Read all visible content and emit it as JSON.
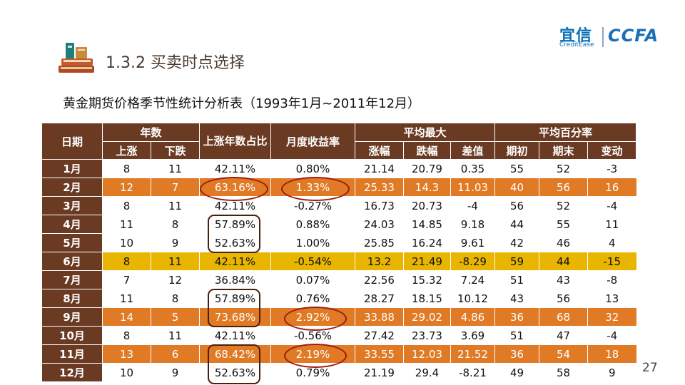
{
  "section": {
    "number": "1.3.2",
    "title": "买卖时点选择"
  },
  "logo": {
    "name": "宜信",
    "sub": "CreditEase",
    "ccfa": "CCFA"
  },
  "subtitle": "黄金期货价格季节性统计分析表（1993年1月~2011年12月）",
  "table": {
    "headers": {
      "date": "日期",
      "years": "年数",
      "up": "上涨",
      "down": "下跌",
      "up_ratio": "上涨年数占比",
      "monthly_return": "月度收益率",
      "avg_max": "平均最大",
      "rise": "涨幅",
      "fall": "跌幅",
      "diff": "差值",
      "avg_pct": "平均百分率",
      "start": "期初",
      "end": "期末",
      "change": "变动"
    },
    "rows": [
      {
        "month": "1月",
        "up": "8",
        "down": "11",
        "ratio": "42.11%",
        "ret": "0.80%",
        "rise": "21.14",
        "fall": "20.79",
        "diff": "0.35",
        "start": "55",
        "end": "52",
        "change": "-3"
      },
      {
        "month": "2月",
        "up": "12",
        "down": "7",
        "ratio": "63.16%",
        "ret": "1.33%",
        "rise": "25.33",
        "fall": "14.3",
        "diff": "11.03",
        "start": "40",
        "end": "56",
        "change": "16"
      },
      {
        "month": "3月",
        "up": "8",
        "down": "11",
        "ratio": "42.11%",
        "ret": "-0.27%",
        "rise": "16.73",
        "fall": "20.73",
        "diff": "-4",
        "start": "56",
        "end": "52",
        "change": "-4"
      },
      {
        "month": "4月",
        "up": "11",
        "down": "8",
        "ratio": "57.89%",
        "ret": "0.88%",
        "rise": "24.03",
        "fall": "14.85",
        "diff": "9.18",
        "start": "44",
        "end": "55",
        "change": "11"
      },
      {
        "month": "5月",
        "up": "10",
        "down": "9",
        "ratio": "52.63%",
        "ret": "1.00%",
        "rise": "25.85",
        "fall": "16.24",
        "diff": "9.61",
        "start": "42",
        "end": "46",
        "change": "4"
      },
      {
        "month": "6月",
        "up": "8",
        "down": "11",
        "ratio": "42.11%",
        "ret": "-0.54%",
        "rise": "13.2",
        "fall": "21.49",
        "diff": "-8.29",
        "start": "59",
        "end": "44",
        "change": "-15"
      },
      {
        "month": "7月",
        "up": "7",
        "down": "12",
        "ratio": "36.84%",
        "ret": "0.07%",
        "rise": "22.56",
        "fall": "15.32",
        "diff": "7.24",
        "start": "51",
        "end": "43",
        "change": "-8"
      },
      {
        "month": "8月",
        "up": "11",
        "down": "8",
        "ratio": "57.89%",
        "ret": "0.76%",
        "rise": "28.27",
        "fall": "18.15",
        "diff": "10.12",
        "start": "43",
        "end": "56",
        "change": "13"
      },
      {
        "month": "9月",
        "up": "14",
        "down": "5",
        "ratio": "73.68%",
        "ret": "2.92%",
        "rise": "33.88",
        "fall": "29.02",
        "diff": "4.86",
        "start": "36",
        "end": "68",
        "change": "32"
      },
      {
        "month": "10月",
        "up": "8",
        "down": "11",
        "ratio": "42.11%",
        "ret": "-0.56%",
        "rise": "27.42",
        "fall": "23.73",
        "diff": "3.69",
        "start": "51",
        "end": "47",
        "change": "-4"
      },
      {
        "month": "11月",
        "up": "13",
        "down": "6",
        "ratio": "68.42%",
        "ret": "2.19%",
        "rise": "33.55",
        "fall": "12.03",
        "diff": "21.52",
        "start": "36",
        "end": "54",
        "change": "18"
      },
      {
        "month": "12月",
        "up": "10",
        "down": "9",
        "ratio": "52.63%",
        "ret": "0.79%",
        "rise": "21.19",
        "fall": "29.4",
        "diff": "-8.21",
        "start": "49",
        "end": "58",
        "change": "9"
      }
    ]
  },
  "colors": {
    "header_brown": "#6b3a22",
    "highlight_orange": "#e07a24",
    "highlight_yellow": "#e8b500",
    "annotation_red": "#a01a10"
  },
  "page_number": "27"
}
